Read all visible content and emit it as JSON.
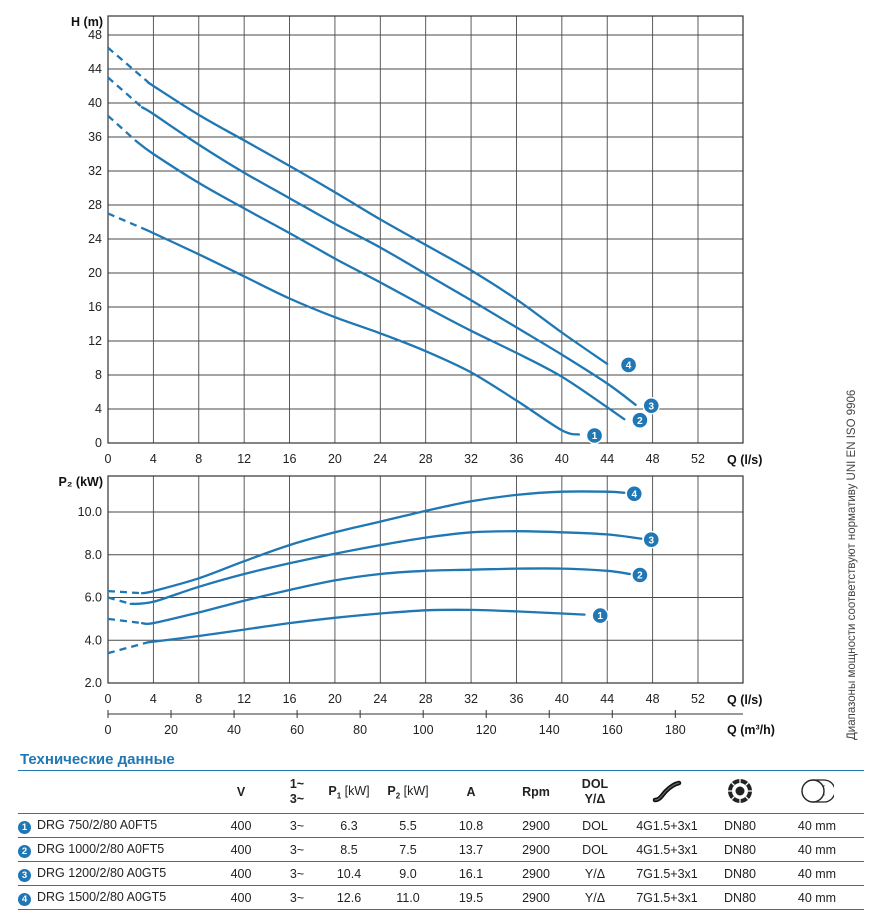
{
  "chart_data": [
    {
      "type": "line",
      "id": "head",
      "xlabel": "Q (l/s)",
      "ylabel": "H (m)",
      "xlim": [
        0,
        56
      ],
      "ylim": [
        0,
        49
      ],
      "xticks": [
        "0",
        "4",
        "8",
        "12",
        "16",
        "20",
        "24",
        "28",
        "32",
        "36",
        "40",
        "44",
        "48",
        "52"
      ],
      "yticks": [
        "0",
        "4",
        "8",
        "12",
        "16",
        "20",
        "24",
        "28",
        "32",
        "36",
        "40",
        "44",
        "48"
      ],
      "series": [
        {
          "name": "1",
          "dashed_until": 3.5,
          "x": [
            0,
            3.5,
            8,
            12,
            16,
            20,
            24,
            28,
            32,
            36,
            40,
            41.5
          ],
          "y": [
            27,
            25,
            22.2,
            19.6,
            17,
            14.8,
            12.9,
            10.8,
            8.3,
            5,
            1.5,
            1
          ]
        },
        {
          "name": "2",
          "dashed_until": 2.5,
          "x": [
            0,
            2.5,
            4,
            8,
            12,
            16,
            20,
            24,
            28,
            32,
            36,
            40,
            44,
            45.5
          ],
          "y": [
            38.5,
            35.5,
            34,
            30.6,
            27.6,
            24.7,
            21.7,
            18.9,
            16,
            13.2,
            10.6,
            7.8,
            4.2,
            2.8
          ]
        },
        {
          "name": "3",
          "dashed_until": 3,
          "x": [
            0,
            3,
            4,
            8,
            12,
            16,
            20,
            24,
            28,
            32,
            36,
            40,
            44,
            46.5
          ],
          "y": [
            43,
            39.5,
            38.7,
            35.1,
            31.8,
            28.8,
            25.8,
            23,
            19.9,
            16.8,
            13.6,
            10.4,
            7,
            4.5
          ]
        },
        {
          "name": "4",
          "dashed_until": 3.5,
          "x": [
            0,
            3.5,
            4,
            8,
            12,
            16,
            20,
            24,
            28,
            32,
            36,
            40,
            44
          ],
          "y": [
            46.5,
            42.5,
            42,
            38.6,
            35.6,
            32.6,
            29.5,
            26.3,
            23.3,
            20.3,
            16.9,
            13,
            9.3
          ]
        }
      ],
      "labels": {
        "1": [
          42,
          1
        ],
        "2": [
          46,
          2.8
        ],
        "3": [
          47,
          4.5
        ],
        "4": [
          45,
          9.3
        ]
      }
    },
    {
      "type": "line",
      "id": "power",
      "xlabel": "Q (l/s)",
      "xlabel2": "Q (m³/h)",
      "ylabel": "P₂ (kW)",
      "xlim": [
        0,
        56
      ],
      "ylim": [
        2,
        11.5
      ],
      "xticks": [
        "0",
        "4",
        "8",
        "12",
        "16",
        "20",
        "24",
        "28",
        "32",
        "36",
        "40",
        "44",
        "48",
        "52"
      ],
      "yticks": [
        "2.0",
        "4.0",
        "6.0",
        "8.0",
        "10.0"
      ],
      "xticks2": [
        "0",
        "20",
        "40",
        "60",
        "80",
        "100",
        "120",
        "140",
        "160",
        "180"
      ],
      "series": [
        {
          "name": "1",
          "dashed_until": 3.5,
          "x": [
            0,
            3.5,
            8,
            12,
            16,
            20,
            24,
            28,
            32,
            36,
            40,
            42
          ],
          "y": [
            3.4,
            3.9,
            4.2,
            4.5,
            4.8,
            5.05,
            5.25,
            5.4,
            5.42,
            5.35,
            5.25,
            5.2
          ]
        },
        {
          "name": "2",
          "dashed_until": 3,
          "x": [
            0,
            3,
            4,
            8,
            12,
            16,
            20,
            24,
            28,
            32,
            36,
            40,
            44,
            46
          ],
          "y": [
            5,
            4.8,
            4.8,
            5.3,
            5.85,
            6.35,
            6.8,
            7.1,
            7.25,
            7.3,
            7.35,
            7.35,
            7.25,
            7.1
          ]
        },
        {
          "name": "3",
          "dashed_until": 2,
          "x": [
            0,
            2,
            4,
            8,
            12,
            16,
            20,
            24,
            28,
            32,
            36,
            40,
            44,
            47
          ],
          "y": [
            6,
            5.7,
            5.8,
            6.5,
            7.1,
            7.6,
            8.05,
            8.45,
            8.8,
            9.05,
            9.1,
            9.05,
            8.95,
            8.75
          ]
        },
        {
          "name": "4",
          "dashed_until": 3,
          "x": [
            0,
            3,
            4,
            8,
            12,
            16,
            20,
            24,
            28,
            32,
            36,
            40,
            44,
            45.5
          ],
          "y": [
            6.3,
            6.2,
            6.3,
            6.9,
            7.7,
            8.45,
            9.05,
            9.55,
            10.05,
            10.5,
            10.8,
            10.95,
            10.95,
            10.9
          ]
        }
      ],
      "labels": {
        "1": [
          42.5,
          5.2
        ],
        "2": [
          46,
          7.1
        ],
        "3": [
          47,
          8.75
        ],
        "4": [
          45.5,
          10.9
        ]
      }
    }
  ],
  "side_note": "Диапазоны мощности соответствуют нормативу UNI EN ISO 9906",
  "section_title": "Технические данные",
  "table": {
    "headers": {
      "v": "V",
      "phase_top": "1~",
      "phase_bottom": "3~",
      "p1": "P",
      "p1_sub": "1",
      "p1_unit": " [kW]",
      "p2": "P",
      "p2_sub": "2",
      "p2_unit": " [kW]",
      "a": "A",
      "rpm": "Rpm",
      "dol_top": "DOL",
      "dol_bottom": "Y/Δ"
    },
    "icons": [
      "cable-icon",
      "flange-icon",
      "impeller-passage-icon"
    ],
    "rows": [
      {
        "num": "1",
        "model": "DRG 750/2/80 A0FT5",
        "v": "400",
        "phase": "3~",
        "p1": "6.3",
        "p2": "5.5",
        "a": "10.8",
        "rpm": "2900",
        "dol": "DOL",
        "cable": "4G1.5+3x1",
        "dn": "DN80",
        "passage": "40 mm"
      },
      {
        "num": "2",
        "model": "DRG 1000/2/80 A0FT5",
        "v": "400",
        "phase": "3~",
        "p1": "8.5",
        "p2": "7.5",
        "a": "13.7",
        "rpm": "2900",
        "dol": "DOL",
        "cable": "4G1.5+3x1",
        "dn": "DN80",
        "passage": "40 mm"
      },
      {
        "num": "3",
        "model": "DRG 1200/2/80 A0GT5",
        "v": "400",
        "phase": "3~",
        "p1": "10.4",
        "p2": "9.0",
        "a": "16.1",
        "rpm": "2900",
        "dol": "Y/Δ",
        "cable": "7G1.5+3x1",
        "dn": "DN80",
        "passage": "40 mm"
      },
      {
        "num": "4",
        "model": "DRG 1500/2/80 A0GT5",
        "v": "400",
        "phase": "3~",
        "p1": "12.6",
        "p2": "11.0",
        "a": "19.5",
        "rpm": "2900",
        "dol": "Y/Δ",
        "cable": "7G1.5+3x1",
        "dn": "DN80",
        "passage": "40 mm"
      }
    ]
  },
  "colors": {
    "curve": "#1f77b4",
    "title": "#1f77b4"
  }
}
